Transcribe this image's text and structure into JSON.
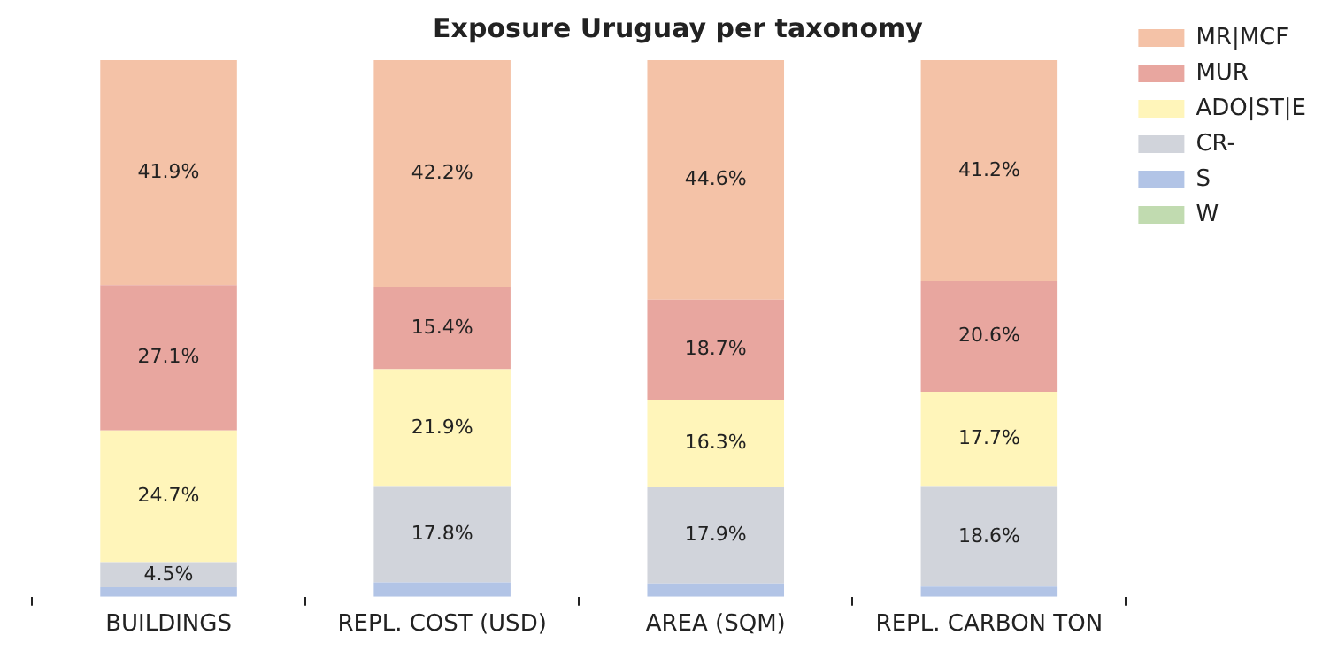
{
  "chart_data": {
    "type": "bar",
    "title": "Exposure Uruguay per taxonomy",
    "categories": [
      "BUILDINGS",
      "REPL. COST (USD)",
      "AREA (SQM)",
      "REPL. CARBON TON"
    ],
    "stacked": true,
    "legend": "top right",
    "tick_labels": "x",
    "series": [
      {
        "name": "W",
        "color": "#c1dbb0",
        "values": [
          0,
          0,
          0,
          0
        ],
        "value_labels": [
          null,
          null,
          null,
          null
        ]
      },
      {
        "name": "S",
        "color": "#b2c4e6",
        "values": [
          1.8,
          2.7,
          2.5,
          1.9
        ],
        "value_labels": [
          null,
          null,
          null,
          null
        ]
      },
      {
        "name": "CR-",
        "color": "#d1d4db",
        "values": [
          4.5,
          17.8,
          17.9,
          18.6
        ],
        "value_labels": [
          "4.5%",
          "17.8%",
          "17.9%",
          "18.6%"
        ]
      },
      {
        "name": "ADO|ST|E",
        "color": "#fff5ba",
        "values": [
          24.7,
          21.9,
          16.3,
          17.7
        ],
        "value_labels": [
          "24.7%",
          "21.9%",
          "16.3%",
          "17.7%"
        ]
      },
      {
        "name": "MUR",
        "color": "#e8a69f",
        "values": [
          27.1,
          15.4,
          18.7,
          20.6
        ],
        "value_labels": [
          "27.1%",
          "15.4%",
          "18.7%",
          "20.6%"
        ]
      },
      {
        "name": "MR|MCF",
        "color": "#f4c2a7",
        "values": [
          41.9,
          42.2,
          44.6,
          41.2
        ],
        "value_labels": [
          "41.9%",
          "42.2%",
          "44.6%",
          "41.2%"
        ]
      }
    ]
  }
}
